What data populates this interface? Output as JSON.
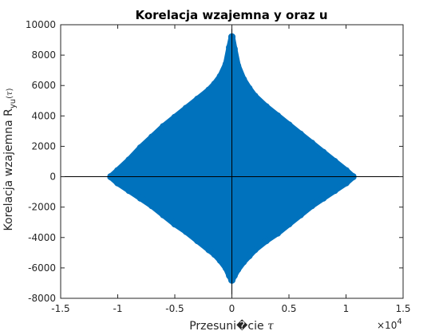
{
  "chart_data": {
    "type": "scatter",
    "title": "Korelacja wzajemna y oraz u",
    "xlabel": {
      "text": "Przesuni�cie ",
      "symbol": "τ"
    },
    "ylabel": {
      "text": "Korelacja wzajemna R",
      "subscript": "yu",
      "arg_open": "(",
      "symbol": "τ",
      "arg_close": ")"
    },
    "x_exponent": {
      "base": "×10",
      "power": "4"
    },
    "xlim": [
      -15000,
      15000
    ],
    "ylim": [
      -8000,
      10000
    ],
    "xticks": [
      -15000,
      -10000,
      -5000,
      0,
      5000,
      10000,
      15000
    ],
    "xtick_labels": [
      "-1.5",
      "-1",
      "-0.5",
      "0",
      "0.5",
      "1",
      "1.5"
    ],
    "yticks": [
      -8000,
      -6000,
      -4000,
      -2000,
      0,
      2000,
      4000,
      6000,
      8000,
      10000
    ],
    "ytick_labels": [
      "-8000",
      "-6000",
      "-4000",
      "-2000",
      "0",
      "2000",
      "4000",
      "6000",
      "8000",
      "10000"
    ],
    "grid": false,
    "marker_color": "#0072BD",
    "reference_lines": [
      {
        "orientation": "horizontal",
        "value": 0
      },
      {
        "orientation": "vertical",
        "value": 0
      }
    ],
    "series": [
      {
        "upper_envelope": {
          "x": [
            -10600,
            -10000,
            -9000,
            -8000,
            -7000,
            -6000,
            -5000,
            -4000,
            -3000,
            -2000,
            -1500,
            -1000,
            -500,
            -200,
            0,
            200,
            500,
            1000,
            1500,
            2000,
            3000,
            4000,
            5000,
            6000,
            7000,
            8000,
            9000,
            10000,
            10600
          ],
          "y": [
            0,
            400,
            1100,
            1900,
            2600,
            3300,
            3900,
            4500,
            5100,
            5700,
            6100,
            6600,
            7400,
            8500,
            9200,
            8400,
            7300,
            6400,
            5800,
            5300,
            4600,
            4000,
            3400,
            2800,
            2200,
            1600,
            1000,
            400,
            0
          ]
        },
        "lower_envelope": {
          "x": [
            -10600,
            -10000,
            -9000,
            -8000,
            -7000,
            -6000,
            -5000,
            -4000,
            -3000,
            -2000,
            -1500,
            -1000,
            -500,
            -200,
            0,
            200,
            500,
            1000,
            1500,
            2000,
            3000,
            4000,
            5000,
            6000,
            7000,
            8000,
            9000,
            10000,
            10600
          ],
          "y": [
            0,
            -400,
            -900,
            -1400,
            -1900,
            -2500,
            -3100,
            -3600,
            -4200,
            -4800,
            -5100,
            -5500,
            -6000,
            -6500,
            -6800,
            -6500,
            -6100,
            -5600,
            -5200,
            -4800,
            -4200,
            -3700,
            -3100,
            -2500,
            -1900,
            -1400,
            -900,
            -400,
            0
          ]
        }
      }
    ]
  }
}
